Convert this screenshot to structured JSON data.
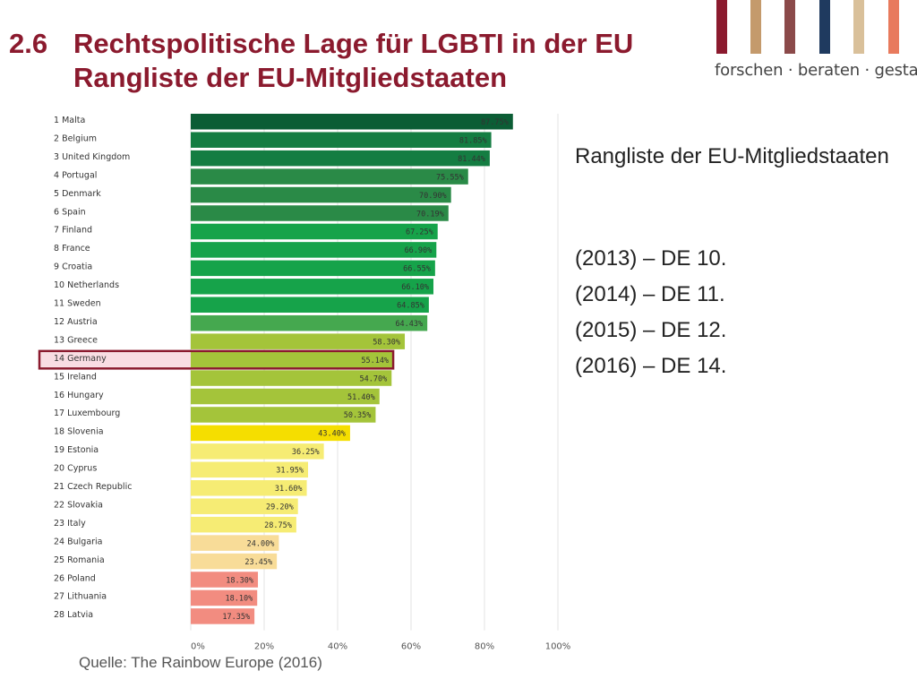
{
  "title": {
    "number": "2.6",
    "line1": "Rechtspolitische Lage für LGBTI in der EU",
    "line2": "Rangliste der EU-Mitgliedstaaten"
  },
  "brand": {
    "tagline": "forschen · beraten · gestalten",
    "bar_colors": [
      "#8b1a2e",
      "#c49a6c",
      "#8b4a4a",
      "#1f3a5f",
      "#d9c09a",
      "#e87a5d"
    ]
  },
  "sidebar": {
    "heading": "Rangliste der EU-Mitgliedstaaten",
    "ranks": [
      "(2013) – DE 10.",
      "(2014) – DE 11.",
      "(2015) – DE 12.",
      "(2016) – DE 14."
    ]
  },
  "source": "Quelle: The Rainbow Europe (2016)",
  "chart_data": {
    "type": "bar",
    "orientation": "horizontal",
    "categories": [
      "1 Malta",
      "2 Belgium",
      "3 United Kingdom",
      "4 Portugal",
      "5 Denmark",
      "6 Spain",
      "7 Finland",
      "8 France",
      "9 Croatia",
      "10 Netherlands",
      "11 Sweden",
      "12 Austria",
      "13 Greece",
      "14 Germany",
      "15 Ireland",
      "16 Hungary",
      "17 Luxembourg",
      "18 Slovenia",
      "19 Estonia",
      "20 Cyprus",
      "21 Czech Republic",
      "22 Slovakia",
      "23 Italy",
      "24 Bulgaria",
      "25 Romania",
      "26 Poland",
      "27 Lithuania",
      "28 Latvia"
    ],
    "values": [
      87.75,
      81.85,
      81.44,
      75.55,
      70.9,
      70.19,
      67.25,
      66.9,
      66.55,
      66.1,
      64.85,
      64.43,
      58.3,
      55.14,
      54.7,
      51.4,
      50.35,
      43.4,
      36.25,
      31.95,
      31.6,
      29.2,
      28.75,
      24.0,
      23.45,
      18.3,
      18.1,
      17.35
    ],
    "value_labels": [
      "87.75%",
      "81.85%",
      "81.44%",
      "75.55%",
      "70.90%",
      "70.19%",
      "67.25%",
      "66.90%",
      "66.55%",
      "66.10%",
      "64.85%",
      "64.43%",
      "58.30%",
      "55.14%",
      "54.70%",
      "51.40%",
      "50.35%",
      "43.40%",
      "36.25%",
      "31.95%",
      "31.60%",
      "29.20%",
      "28.75%",
      "24.00%",
      "23.45%",
      "18.30%",
      "18.10%",
      "17.35%"
    ],
    "colors": [
      "#0b5d35",
      "#147d42",
      "#147d42",
      "#2a8a47",
      "#2a8a47",
      "#2a8a47",
      "#16a34a",
      "#16a34a",
      "#16a34a",
      "#16a34a",
      "#16a34a",
      "#45a84f",
      "#a4c43a",
      "#a4c43a",
      "#a4c43a",
      "#a4c43a",
      "#a4c43a",
      "#f5de00",
      "#f6ec74",
      "#f6ec74",
      "#f6ec74",
      "#f6ec74",
      "#f6ec74",
      "#f8dc98",
      "#f8dc98",
      "#f28c80",
      "#f28c80",
      "#f28c80"
    ],
    "highlight": "14 Germany",
    "highlight_color": "#8b1a2e",
    "xlim": [
      0,
      100
    ],
    "xticks": [
      0,
      20,
      40,
      60,
      80,
      100
    ],
    "xtick_labels": [
      "0%",
      "20%",
      "40%",
      "60%",
      "80%",
      "100%"
    ],
    "grid": true,
    "title": "",
    "xlabel": "",
    "ylabel": ""
  }
}
